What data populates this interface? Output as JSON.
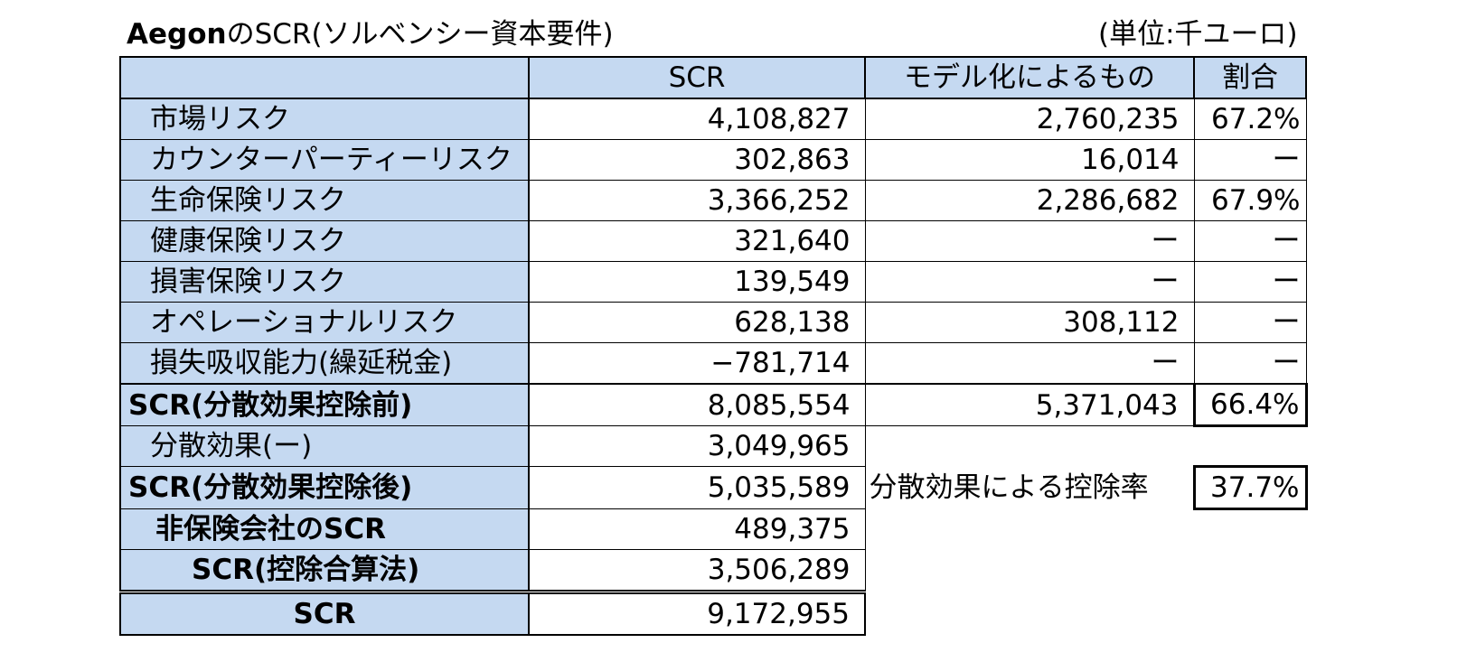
{
  "title": {
    "prefix": "Aegon",
    "rest": "のSCR(ソルベンシー資本要件)"
  },
  "unit": "(単位:千ユーロ)",
  "headers": {
    "label": "",
    "scr": "SCR",
    "model": "モデル化によるもの",
    "ratio": "割合"
  },
  "rows": [
    {
      "label": "市場リスク",
      "scr": "4,108,827",
      "model": "2,760,235",
      "ratio": "67.2%"
    },
    {
      "label": "カウンターパーティーリスク",
      "scr": "302,863",
      "model": "16,014",
      "ratio": "ー"
    },
    {
      "label": "生命保険リスク",
      "scr": "3,366,252",
      "model": "2,286,682",
      "ratio": "67.9%"
    },
    {
      "label": "健康保険リスク",
      "scr": "321,640",
      "model": "ー",
      "ratio": "ー"
    },
    {
      "label": "損害保険リスク",
      "scr": "139,549",
      "model": "ー",
      "ratio": "ー"
    },
    {
      "label": "オペレーショナルリスク",
      "scr": "628,138",
      "model": "308,112",
      "ratio": "ー"
    },
    {
      "label": "損失吸収能力(繰延税金)",
      "scr": "−781,714",
      "model": "ー",
      "ratio": "ー"
    },
    {
      "label": "SCR(分散効果控除前)",
      "scr": "8,085,554",
      "model": "5,371,043",
      "ratio": "66.4%"
    },
    {
      "label": "分散効果(ー)",
      "scr": "3,049,965"
    },
    {
      "label": "SCR(分散効果控除後)",
      "scr": "5,035,589",
      "extra_label": "分散効果による控除率",
      "extra_value": "37.7%"
    },
    {
      "label": "非保険会社のSCR",
      "scr": "489,375"
    },
    {
      "label": "SCR(控除合算法)",
      "scr": "3,506,289"
    },
    {
      "label": "SCR",
      "scr": "9,172,955"
    }
  ]
}
